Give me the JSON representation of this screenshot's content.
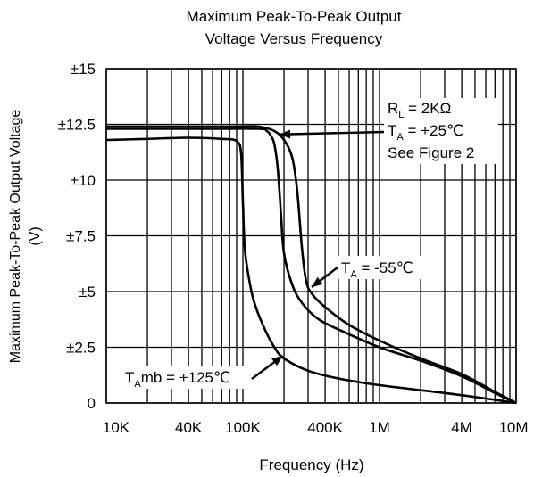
{
  "chart_data": {
    "type": "line",
    "title_line1": "Maximum Peak-To-Peak Output",
    "title_line2": "Voltage Versus Frequency",
    "xlabel": "Frequency (Hz)",
    "ylabel_line1": "Maximum Peak-To-Peak Output Voltage",
    "ylabel_line2": "(V)",
    "x_scale": "log",
    "xlim": [
      10000,
      10000000
    ],
    "ylim": [
      0,
      15
    ],
    "grid": true,
    "x_ticks": [
      {
        "value": 10000,
        "label": "10K"
      },
      {
        "value": 40000,
        "label": "40K"
      },
      {
        "value": 100000,
        "label": "100K"
      },
      {
        "value": 400000,
        "label": "400K"
      },
      {
        "value": 1000000,
        "label": "1M"
      },
      {
        "value": 4000000,
        "label": "4M"
      },
      {
        "value": 10000000,
        "label": "10M"
      }
    ],
    "y_ticks": [
      {
        "value": 0,
        "label": "0"
      },
      {
        "value": 2.5,
        "label": "±2.5"
      },
      {
        "value": 5,
        "label": "±5"
      },
      {
        "value": 7.5,
        "label": "±7.5"
      },
      {
        "value": 10,
        "label": "±10"
      },
      {
        "value": 12.5,
        "label": "±12.5"
      },
      {
        "value": 15,
        "label": "±15"
      }
    ],
    "series": [
      {
        "name": "TA = +25℃",
        "points": [
          [
            10000,
            12.3
          ],
          [
            50000,
            12.3
          ],
          [
            130000,
            12.3
          ],
          [
            150000,
            12.2
          ],
          [
            160000,
            12.0
          ],
          [
            170000,
            11.6
          ],
          [
            180000,
            10.5
          ],
          [
            190000,
            8.5
          ],
          [
            200000,
            6.7
          ],
          [
            230000,
            5.3
          ],
          [
            270000,
            4.5
          ],
          [
            350000,
            3.8
          ],
          [
            500000,
            3.3
          ],
          [
            1000000,
            2.5
          ],
          [
            2000000,
            1.9
          ],
          [
            4000000,
            1.2
          ],
          [
            7000000,
            0.45
          ],
          [
            10000000,
            0
          ]
        ]
      },
      {
        "name": "TA = -55℃",
        "points": [
          [
            10000,
            12.4
          ],
          [
            80000,
            12.4
          ],
          [
            130000,
            12.4
          ],
          [
            170000,
            12.2
          ],
          [
            200000,
            11.8
          ],
          [
            230000,
            11.0
          ],
          [
            250000,
            9.5
          ],
          [
            270000,
            7.0
          ],
          [
            290000,
            5.5
          ],
          [
            320000,
            4.9
          ],
          [
            400000,
            4.3
          ],
          [
            600000,
            3.5
          ],
          [
            1000000,
            2.8
          ],
          [
            2000000,
            2.0
          ],
          [
            4000000,
            1.3
          ],
          [
            7000000,
            0.5
          ],
          [
            10000000,
            0
          ]
        ]
      },
      {
        "name": "TAmb = +125℃",
        "points": [
          [
            10000,
            11.8
          ],
          [
            20000,
            11.85
          ],
          [
            40000,
            11.9
          ],
          [
            70000,
            11.85
          ],
          [
            90000,
            11.75
          ],
          [
            97000,
            11.2
          ],
          [
            100000,
            9.0
          ],
          [
            103000,
            7.0
          ],
          [
            110000,
            5.7
          ],
          [
            120000,
            4.6
          ],
          [
            140000,
            3.5
          ],
          [
            170000,
            2.5
          ],
          [
            200000,
            2.0
          ],
          [
            300000,
            1.45
          ],
          [
            500000,
            1.1
          ],
          [
            1000000,
            0.8
          ],
          [
            3000000,
            0.45
          ],
          [
            6000000,
            0.2
          ],
          [
            10000000,
            0
          ]
        ]
      }
    ],
    "annotations": {
      "conditions_line1": "RL = 2KΩ",
      "conditions_line2": "TA = +25℃",
      "conditions_line3": "See Figure 2",
      "label_minus55": "TA = -55℃",
      "label_plus125": "TAmb = +125℃"
    }
  }
}
